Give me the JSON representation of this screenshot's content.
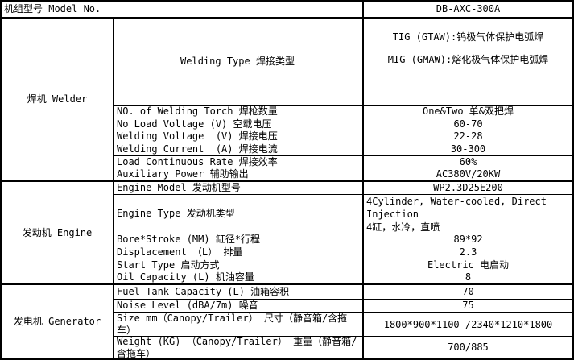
{
  "colors": {
    "border": "#000000",
    "background": "#ffffff",
    "text": "#000000"
  },
  "header": {
    "label": "机组型号 Model No.",
    "value": "DB-AXC-300A"
  },
  "sections": [
    {
      "name": "焊机 Welder",
      "rows": [
        {
          "label": "Welding Type 焊接类型",
          "value_lines": [
            "TIG (GTAW):钨极气体保护电弧焊",
            "MIG (GMAW):熔化极气体保护电弧焊"
          ]
        },
        {
          "label": "NO. of Welding Torch 焊枪数量",
          "value": "One&Two 单&双把焊"
        },
        {
          "label": "No Load Voltage (V) 空载电压",
          "value": "60-70"
        },
        {
          "label": "Welding Voltage  (V) 焊接电压",
          "value": "22-28"
        },
        {
          "label": "Welding Current  (A) 焊接电流",
          "value": "30-300"
        },
        {
          "label": "Load Continuous Rate 焊接效率",
          "value": "60%"
        },
        {
          "label": "Auxiliary Power 辅助输出",
          "value": "AC380V/20KW"
        }
      ]
    },
    {
      "name": "发动机 Engine",
      "rows": [
        {
          "label": "Engine Model 发动机型号",
          "value": "WP2.3D25E200"
        },
        {
          "label": "Engine Type 发动机类型",
          "value_lines": [
            "4Cylinder, Water-cooled, Direct Injection",
            "4缸，水冷，直喷"
          ]
        },
        {
          "label": "Bore*Stroke (MM) 缸径*行程",
          "value": "89*92"
        },
        {
          "label": "Displacement （L） 排量",
          "value": "2.3"
        },
        {
          "label": "Start Type 启动方式",
          "value": "Electric 电启动"
        },
        {
          "label": "Oil Capacity (L) 机油容量",
          "value": "8"
        }
      ]
    },
    {
      "name": "发电机 Generator",
      "rows": [
        {
          "label": "Fuel Tank Capacity (L) 油箱容积",
          "value": "70"
        },
        {
          "label": "Noise Level (dBA/7m) 噪音",
          "value": "75"
        },
        {
          "label": "Size mm（Canopy/Trailer） 尺寸（静音箱/含拖车）",
          "value": "1800*900*1100 /2340*1210*1800"
        },
        {
          "label": "Weight (KG) （Canopy/Trailer） 重量（静音箱/含拖车）",
          "value": "700/885"
        }
      ]
    }
  ]
}
